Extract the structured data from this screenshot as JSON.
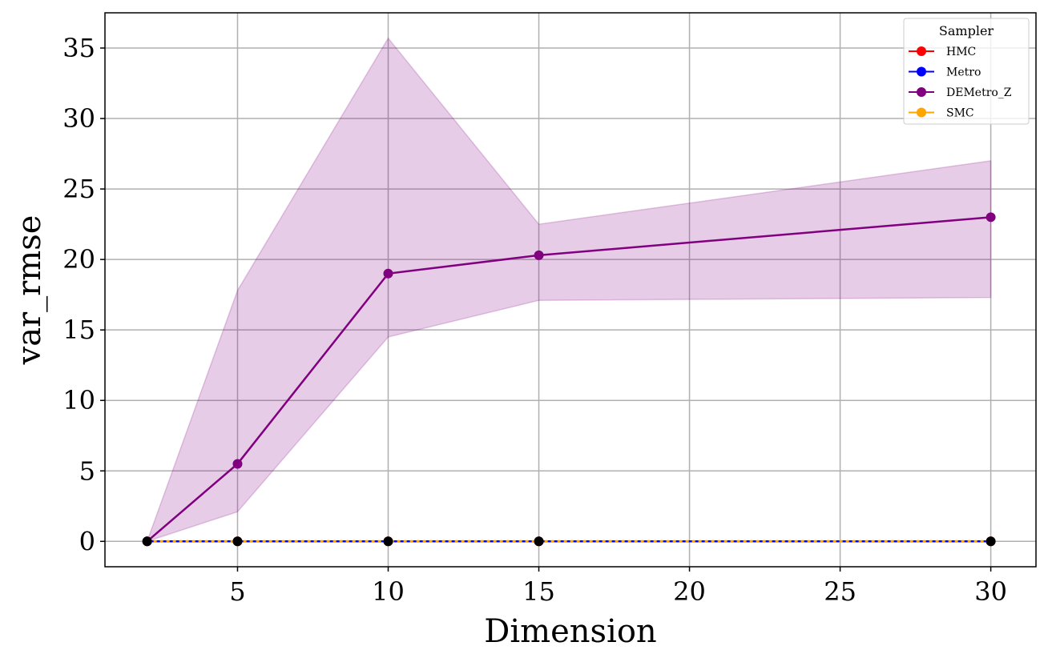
{
  "chart_data": {
    "type": "line",
    "xlabel": "Dimension",
    "ylabel": "var_rmse",
    "xlim": [
      0.6,
      31.5
    ],
    "ylim": [
      -1.8,
      37.5
    ],
    "x_ticks": [
      5,
      10,
      15,
      20,
      25,
      30
    ],
    "y_ticks": [
      0,
      5,
      10,
      15,
      20,
      25,
      30,
      35
    ],
    "grid": true,
    "legend": {
      "title": "Sampler",
      "placement": "top-right"
    },
    "series": [
      {
        "name": "HMC",
        "color": "#ff0000",
        "x": [
          2,
          5,
          10,
          15,
          30
        ],
        "values": [
          0,
          0,
          0,
          0,
          0
        ]
      },
      {
        "name": "Metro",
        "color": "#0000ff",
        "x": [
          2,
          5,
          10,
          15,
          30
        ],
        "values": [
          0,
          0,
          0,
          0,
          0
        ]
      },
      {
        "name": "DEMetro_Z",
        "color": "#800080",
        "x": [
          2,
          5,
          10,
          15,
          30
        ],
        "values": [
          0,
          5.5,
          19.0,
          20.3,
          23.0
        ],
        "band_lower": [
          0,
          2.1,
          14.5,
          17.1,
          17.3
        ],
        "band_upper": [
          0,
          17.8,
          35.7,
          22.5,
          27.0
        ]
      },
      {
        "name": "SMC",
        "color": "#ffa500",
        "x": [
          2,
          5,
          10,
          15,
          30
        ],
        "values": [
          0,
          0,
          0,
          0,
          0
        ]
      }
    ],
    "overlay_points": {
      "color": "#000000",
      "x": [
        2,
        5,
        10,
        15,
        30
      ],
      "values": [
        0,
        0,
        0,
        0,
        0
      ]
    }
  }
}
